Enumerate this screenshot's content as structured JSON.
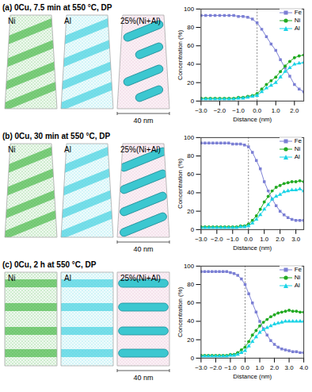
{
  "chart_data": [
    {
      "type": "line",
      "title": "(a) 0Cu, 7.5 min at 550 °C, DP",
      "annotations": [
        "Ni",
        "Al",
        "25%(Ni+Al)",
        "40 nm"
      ],
      "x_label": "Distance (nm)",
      "y_label": "Concentration (%)",
      "x": [
        -3,
        -2.75,
        -2.5,
        -2.25,
        -2,
        -1.75,
        -1.5,
        -1.25,
        -1,
        -0.75,
        -0.5,
        -0.25,
        0,
        0.25,
        0.5,
        0.75,
        1,
        1.25,
        1.5,
        1.75,
        2,
        2.25,
        2.5
      ],
      "series": [
        {
          "name": "Fe",
          "color": "#7b7fd4",
          "marker": "square",
          "values": [
            93,
            93,
            93,
            93,
            93,
            93,
            93,
            93,
            92,
            92,
            91,
            89,
            85,
            78,
            70,
            62,
            55,
            45,
            36,
            27,
            18,
            13,
            10
          ]
        },
        {
          "name": "Ni",
          "color": "#22aa22",
          "marker": "circle",
          "values": [
            3,
            3,
            3,
            3,
            3,
            3,
            3,
            3,
            4,
            4,
            5,
            6,
            8,
            13,
            18,
            22,
            26,
            32,
            38,
            43,
            47,
            49,
            50
          ]
        },
        {
          "name": "Al",
          "color": "#19d3e6",
          "marker": "triangle",
          "values": [
            2,
            2,
            2,
            2,
            2,
            2,
            2,
            2,
            3,
            3,
            4,
            5,
            6,
            10,
            14,
            17,
            20,
            26,
            32,
            36,
            40,
            41,
            42
          ]
        }
      ],
      "xlim": [
        -3,
        2.5
      ],
      "xticks": [
        -3,
        -2,
        -1,
        0,
        1,
        2
      ],
      "ylim": [
        0,
        100
      ],
      "yticks": [
        0,
        20,
        40,
        60,
        80,
        100
      ],
      "vline": 0,
      "legend": "top-right"
    },
    {
      "type": "line",
      "title": "(b) 0Cu, 30 min at 550 °C, DP",
      "annotations": [
        "Ni",
        "Al",
        "25%(Ni+Al)",
        "40 nm"
      ],
      "x_label": "Distance (nm)",
      "y_label": "Concentration (%)",
      "x": [
        -3,
        -2.75,
        -2.5,
        -2.25,
        -2,
        -1.75,
        -1.5,
        -1.25,
        -1,
        -0.75,
        -0.5,
        -0.25,
        0,
        0.25,
        0.5,
        0.75,
        1,
        1.25,
        1.5,
        1.75,
        2,
        2.25,
        2.5,
        2.75,
        3,
        3.25,
        3.5
      ],
      "series": [
        {
          "name": "Fe",
          "color": "#7b7fd4",
          "marker": "square",
          "values": [
            94,
            94,
            94,
            94,
            94,
            94,
            94,
            94,
            93,
            93,
            93,
            92,
            90,
            84,
            75,
            66,
            52,
            42,
            33,
            26,
            20,
            16,
            13,
            11,
            10,
            10,
            10
          ]
        },
        {
          "name": "Ni",
          "color": "#22aa22",
          "marker": "circle",
          "values": [
            3,
            3,
            3,
            3,
            3,
            3,
            3,
            3,
            3,
            3,
            4,
            4,
            6,
            10,
            15,
            22,
            30,
            36,
            42,
            46,
            48,
            50,
            51,
            52,
            52,
            53,
            52
          ]
        },
        {
          "name": "Al",
          "color": "#19d3e6",
          "marker": "triangle",
          "values": [
            2,
            2,
            2,
            2,
            2,
            2,
            2,
            2,
            2,
            2,
            3,
            3,
            4,
            7,
            11,
            16,
            22,
            27,
            33,
            36,
            38,
            41,
            42,
            43,
            43,
            44,
            42
          ]
        }
      ],
      "xlim": [
        -3,
        3.5
      ],
      "xticks": [
        -3,
        -2,
        -1,
        0,
        1,
        2,
        3
      ],
      "ylim": [
        0,
        100
      ],
      "yticks": [
        0,
        20,
        40,
        60,
        80,
        100
      ],
      "vline": 0,
      "legend": "top-right"
    },
    {
      "type": "line",
      "title": "(c) 0Cu, 2 h at 550 °C, DP",
      "annotations": [
        "Ni",
        "Al",
        "25%(Ni+Al)",
        "40 nm"
      ],
      "x_label": "Distance (nm)",
      "y_label": "Concentration (%)",
      "x": [
        -3,
        -2.75,
        -2.5,
        -2.25,
        -2,
        -1.75,
        -1.5,
        -1.25,
        -1,
        -0.75,
        -0.5,
        -0.25,
        0,
        0.25,
        0.5,
        0.75,
        1,
        1.25,
        1.5,
        1.75,
        2,
        2.25,
        2.5,
        2.75,
        3,
        3.25,
        3.5,
        3.75,
        4
      ],
      "series": [
        {
          "name": "Fe",
          "color": "#7b7fd4",
          "marker": "square",
          "values": [
            94,
            94,
            94,
            94,
            94,
            94,
            94,
            94,
            93,
            92,
            90,
            86,
            80,
            70,
            60,
            50,
            40,
            32,
            25,
            19,
            15,
            12,
            10,
            9,
            8,
            7,
            7,
            6,
            6
          ]
        },
        {
          "name": "Ni",
          "color": "#22aa22",
          "marker": "circle",
          "values": [
            3,
            3,
            3,
            3,
            3,
            3,
            3,
            3,
            4,
            4,
            6,
            9,
            12,
            18,
            25,
            30,
            35,
            39,
            42,
            45,
            47,
            49,
            50,
            51,
            52,
            51,
            51,
            50,
            50
          ]
        },
        {
          "name": "Al",
          "color": "#19d3e6",
          "marker": "triangle",
          "values": [
            2,
            2,
            2,
            2,
            2,
            2,
            2,
            2,
            3,
            3,
            4,
            6,
            8,
            13,
            18,
            23,
            28,
            31,
            33,
            35,
            37,
            38,
            39,
            40,
            40,
            40,
            40,
            40,
            40
          ]
        }
      ],
      "xlim": [
        -3,
        4
      ],
      "xticks": [
        -3,
        -2,
        -1,
        0,
        1,
        2,
        3,
        4
      ],
      "ylim": [
        0,
        100
      ],
      "yticks": [
        0,
        20,
        40,
        60,
        80,
        100
      ],
      "vline": 0,
      "legend": "top-right"
    }
  ]
}
